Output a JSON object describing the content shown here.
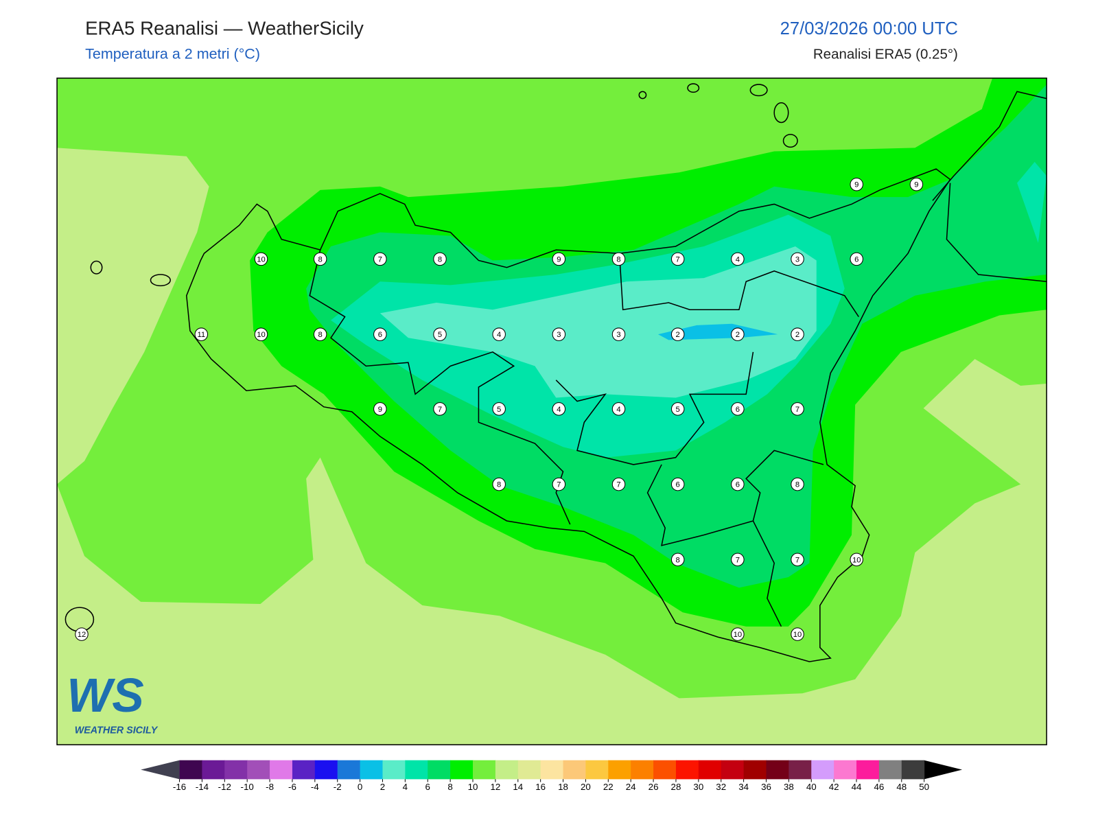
{
  "header": {
    "title": "ERA5 Reanalisi — WeatherSicily",
    "subtitle": "Temperatura a 2 metri (°C)",
    "datetime": "27/03/2026 00:00 UTC",
    "source": "Reanalisi ERA5 (0.25°)"
  },
  "stations": [
    10,
    8,
    7,
    8,
    9,
    8,
    7,
    4,
    3,
    6,
    9,
    9,
    11,
    10,
    8,
    6,
    5,
    4,
    3,
    3,
    2,
    2,
    2,
    9,
    7,
    5,
    4,
    4,
    5,
    6,
    7,
    8,
    7,
    7,
    6,
    6,
    8,
    8,
    7,
    7,
    10,
    10,
    10,
    12
  ],
  "colorbar": {
    "ticks": [
      -16,
      -14,
      -12,
      -10,
      -8,
      -6,
      -4,
      -2,
      0,
      2,
      4,
      6,
      8,
      10,
      12,
      14,
      16,
      18,
      20,
      22,
      24,
      26,
      28,
      30,
      32,
      34,
      36,
      38,
      40,
      42,
      44,
      46,
      48,
      50
    ],
    "colors": [
      "#3f0650",
      "#6b1a96",
      "#8331a8",
      "#a24fb8",
      "#e079e8",
      "#5a22c4",
      "#1a10f0",
      "#1a78d8",
      "#0ac0e6",
      "#5aecc8",
      "#00e4a8",
      "#00dc64",
      "#00ee00",
      "#74ee3c",
      "#c4ee88",
      "#e0ea94",
      "#fce4a0",
      "#fcc878",
      "#fcc840",
      "#fca000",
      "#fc8000",
      "#fc5000",
      "#fc1400",
      "#e00000",
      "#c40010",
      "#a00000",
      "#740018",
      "#782048",
      "#d49cfc",
      "#fc78d0",
      "#fc1c9c",
      "#808080",
      "#3c3c3c"
    ],
    "under_color": "#404050",
    "over_color": "#000000"
  },
  "logo": {
    "mark": "WS",
    "caption": "WEATHER SICILY"
  }
}
